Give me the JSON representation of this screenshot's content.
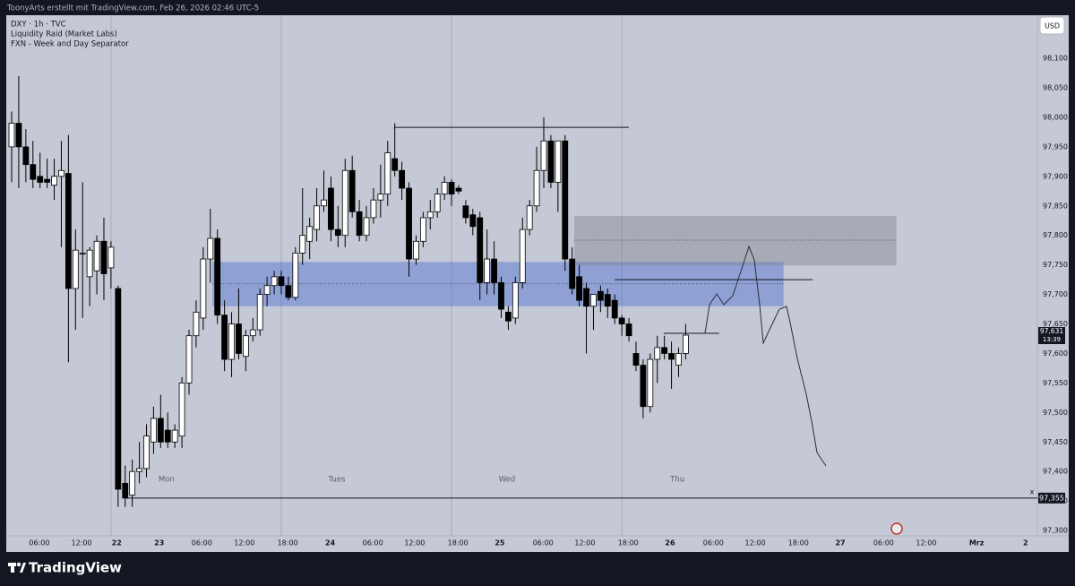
{
  "header": "ToonyArts erstellt mit TradingView.com, Feb 26, 2026 02:46 UTC-5",
  "footer_brand": "TradingView",
  "chart_data": {
    "type": "candlestick",
    "legend": [
      "DXY · 1h · TVC",
      "Liquidity Raid (Market Labs)",
      "FXN - Week and Day Separator"
    ],
    "currency": "USD",
    "up_color": "#ffffff",
    "down_color": "#000000",
    "open": [
      97.95,
      97.99,
      97.95,
      97.92,
      97.9,
      97.895,
      97.885,
      97.9,
      97.905,
      97.71,
      97.77,
      97.73,
      97.74,
      97.79,
      97.745,
      97.71,
      97.38,
      97.36,
      97.4,
      97.405,
      97.45,
      97.49,
      97.47,
      97.45,
      97.46,
      97.55,
      97.63,
      97.66,
      97.76,
      97.795,
      97.665,
      97.59,
      97.65,
      97.595,
      97.63,
      97.64,
      97.7,
      97.715,
      97.73,
      97.715,
      97.695,
      97.77,
      97.79,
      97.81,
      97.85,
      97.88,
      97.81,
      97.8,
      97.91,
      97.84,
      97.8,
      97.83,
      97.86,
      97.87,
      97.93,
      97.91,
      97.88,
      97.76,
      97.79,
      97.83,
      97.84,
      97.87,
      97.89,
      97.88,
      97.85,
      97.835,
      97.83,
      97.72,
      97.76,
      97.72,
      97.67,
      97.66,
      97.72,
      97.81,
      97.85,
      97.91,
      97.96,
      97.89,
      97.96,
      97.76,
      97.73,
      97.71,
      97.68,
      97.705,
      97.7,
      97.69,
      97.66,
      97.65,
      97.6,
      97.58,
      97.51,
      97.59,
      97.61,
      97.6,
      97.58,
      97.6
    ],
    "high": [
      98.01,
      98.07,
      97.98,
      97.96,
      97.94,
      97.93,
      97.93,
      97.96,
      97.97,
      97.81,
      97.89,
      97.78,
      97.8,
      97.83,
      97.79,
      97.715,
      97.41,
      97.42,
      97.45,
      97.48,
      97.51,
      97.53,
      97.5,
      97.48,
      97.56,
      97.64,
      97.69,
      97.78,
      97.845,
      97.81,
      97.69,
      97.67,
      97.71,
      97.64,
      97.66,
      97.71,
      97.73,
      97.74,
      97.74,
      97.73,
      97.78,
      97.88,
      97.83,
      97.88,
      97.91,
      97.9,
      97.85,
      97.93,
      97.935,
      97.86,
      97.85,
      97.88,
      97.92,
      97.96,
      97.99,
      97.925,
      97.89,
      97.8,
      97.84,
      97.86,
      97.88,
      97.9,
      97.895,
      97.885,
      97.86,
      97.845,
      97.84,
      97.81,
      97.79,
      97.73,
      97.68,
      97.73,
      97.83,
      97.86,
      97.95,
      98.0,
      97.97,
      97.96,
      97.97,
      97.78,
      97.75,
      97.72,
      97.7,
      97.715,
      97.71,
      97.7,
      97.665,
      97.66,
      97.62,
      97.59,
      97.6,
      97.63,
      97.63,
      97.62,
      97.61,
      97.65
    ],
    "low": [
      97.89,
      97.88,
      97.89,
      97.88,
      97.88,
      97.88,
      97.86,
      97.78,
      97.585,
      97.64,
      97.66,
      97.68,
      97.7,
      97.69,
      97.71,
      97.34,
      97.34,
      97.34,
      97.38,
      97.39,
      97.43,
      97.44,
      97.44,
      97.44,
      97.44,
      97.53,
      97.61,
      97.64,
      97.72,
      97.65,
      97.57,
      97.56,
      97.59,
      97.57,
      97.62,
      97.63,
      97.68,
      97.7,
      97.7,
      97.69,
      97.69,
      97.75,
      97.76,
      97.79,
      97.84,
      97.79,
      97.78,
      97.78,
      97.83,
      97.79,
      97.79,
      97.82,
      97.83,
      97.85,
      97.9,
      97.86,
      97.73,
      97.75,
      97.78,
      97.81,
      97.83,
      97.86,
      97.85,
      97.87,
      97.82,
      97.8,
      97.69,
      97.7,
      97.7,
      97.66,
      97.64,
      97.65,
      97.71,
      97.8,
      97.84,
      97.88,
      97.88,
      97.84,
      97.74,
      97.7,
      97.68,
      97.6,
      97.64,
      97.67,
      97.66,
      97.65,
      97.63,
      97.62,
      97.57,
      97.49,
      97.5,
      97.55,
      97.59,
      97.54,
      97.56,
      97.59
    ],
    "close": [
      97.99,
      97.95,
      97.92,
      97.895,
      97.89,
      97.89,
      97.9,
      97.91,
      97.71,
      97.775,
      97.77,
      97.775,
      97.79,
      97.735,
      97.78,
      97.37,
      97.355,
      97.4,
      97.405,
      97.46,
      97.49,
      97.45,
      97.45,
      97.47,
      97.55,
      97.63,
      97.67,
      97.76,
      97.795,
      97.665,
      97.59,
      97.65,
      97.6,
      97.63,
      97.64,
      97.7,
      97.715,
      97.73,
      97.715,
      97.695,
      97.77,
      97.8,
      97.815,
      97.85,
      97.86,
      97.81,
      97.8,
      97.91,
      97.84,
      97.8,
      97.83,
      97.86,
      97.87,
      97.94,
      97.91,
      97.88,
      97.76,
      97.79,
      97.83,
      97.84,
      97.87,
      97.89,
      97.87,
      97.875,
      97.83,
      97.815,
      97.72,
      97.76,
      97.72,
      97.675,
      97.655,
      97.72,
      97.81,
      97.85,
      97.91,
      97.96,
      97.89,
      97.96,
      97.76,
      97.71,
      97.69,
      97.68,
      97.7,
      97.69,
      97.68,
      97.66,
      97.65,
      97.63,
      97.58,
      97.51,
      97.59,
      97.61,
      97.6,
      97.59,
      97.6,
      97.631
    ],
    "ylim": [
      97.291,
      98.173
    ],
    "yticks": [
      {
        "value": 97.3,
        "label": "97,300"
      },
      {
        "value": 97.35,
        "label": "97,350"
      },
      {
        "value": 97.4,
        "label": "97,400"
      },
      {
        "value": 97.45,
        "label": "97,450"
      },
      {
        "value": 97.5,
        "label": "97,500"
      },
      {
        "value": 97.55,
        "label": "97,550"
      },
      {
        "value": 97.6,
        "label": "97,600"
      },
      {
        "value": 97.65,
        "label": "97,650"
      },
      {
        "value": 97.7,
        "label": "97,700"
      },
      {
        "value": 97.75,
        "label": "97,750"
      },
      {
        "value": 97.8,
        "label": "97,800"
      },
      {
        "value": 97.85,
        "label": "97,850"
      },
      {
        "value": 97.9,
        "label": "97,900"
      },
      {
        "value": 97.95,
        "label": "97,950"
      },
      {
        "value": 98.0,
        "label": "98,000"
      },
      {
        "value": 98.05,
        "label": "98,050"
      },
      {
        "value": 98.1,
        "label": "98,100"
      }
    ],
    "xlim": [
      -0.76,
      144.57
    ],
    "xticks": [
      {
        "value": 3.9,
        "label": "06:00"
      },
      {
        "value": 9.85,
        "label": "12:00"
      },
      {
        "value": 14.8,
        "label": "22"
      },
      {
        "value": 20.8,
        "label": "23"
      },
      {
        "value": 26.8,
        "label": "06:00"
      },
      {
        "value": 32.8,
        "label": "12:00"
      },
      {
        "value": 38.9,
        "label": "18:00"
      },
      {
        "value": 44.9,
        "label": "24"
      },
      {
        "value": 50.9,
        "label": "06:00"
      },
      {
        "value": 56.8,
        "label": "12:00"
      },
      {
        "value": 62.9,
        "label": "18:00"
      },
      {
        "value": 68.8,
        "label": "25"
      },
      {
        "value": 74.9,
        "label": "06:00"
      },
      {
        "value": 80.8,
        "label": "12:00"
      },
      {
        "value": 86.9,
        "label": "18:00"
      },
      {
        "value": 92.8,
        "label": "26"
      },
      {
        "value": 98.9,
        "label": "06:00"
      },
      {
        "value": 104.8,
        "label": "12:00"
      },
      {
        "value": 110.9,
        "label": "18:00"
      },
      {
        "value": 116.8,
        "label": "27"
      },
      {
        "value": 122.9,
        "label": "06:00"
      },
      {
        "value": 128.9,
        "label": "12:00"
      },
      {
        "value": 136,
        "label": "Mrz"
      },
      {
        "value": 142.9,
        "label": "2"
      }
    ],
    "day_separators": [
      {
        "value": 14,
        "label": "Mon"
      },
      {
        "value": 38,
        "label": "Tues"
      },
      {
        "value": 62,
        "label": "Wed"
      },
      {
        "value": 86,
        "label": "Thu"
      }
    ],
    "zones": [
      {
        "top": 97.755,
        "bottom": 97.68,
        "mid": 97.718,
        "start": 28.3,
        "end": 108.8,
        "color": "#3c64d2"
      },
      {
        "top": 97.833,
        "bottom": 97.749,
        "mid": 97.792,
        "start": 79.3,
        "end": 124.7,
        "color": "#7d808a"
      }
    ],
    "levels": [
      {
        "price": 97.983,
        "start": 53.9,
        "end": 87
      },
      {
        "price": 97.725,
        "start": 85,
        "end": 112.9
      },
      {
        "price": 97.634,
        "start": 91.9,
        "end": 99.7
      },
      {
        "price": 97.355,
        "start": 16,
        "end": 144.57,
        "label": "97,355",
        "marker": "x"
      }
    ],
    "last_price": {
      "value": 97.631,
      "label": "97,631",
      "countdown": "13:39"
    }
  }
}
